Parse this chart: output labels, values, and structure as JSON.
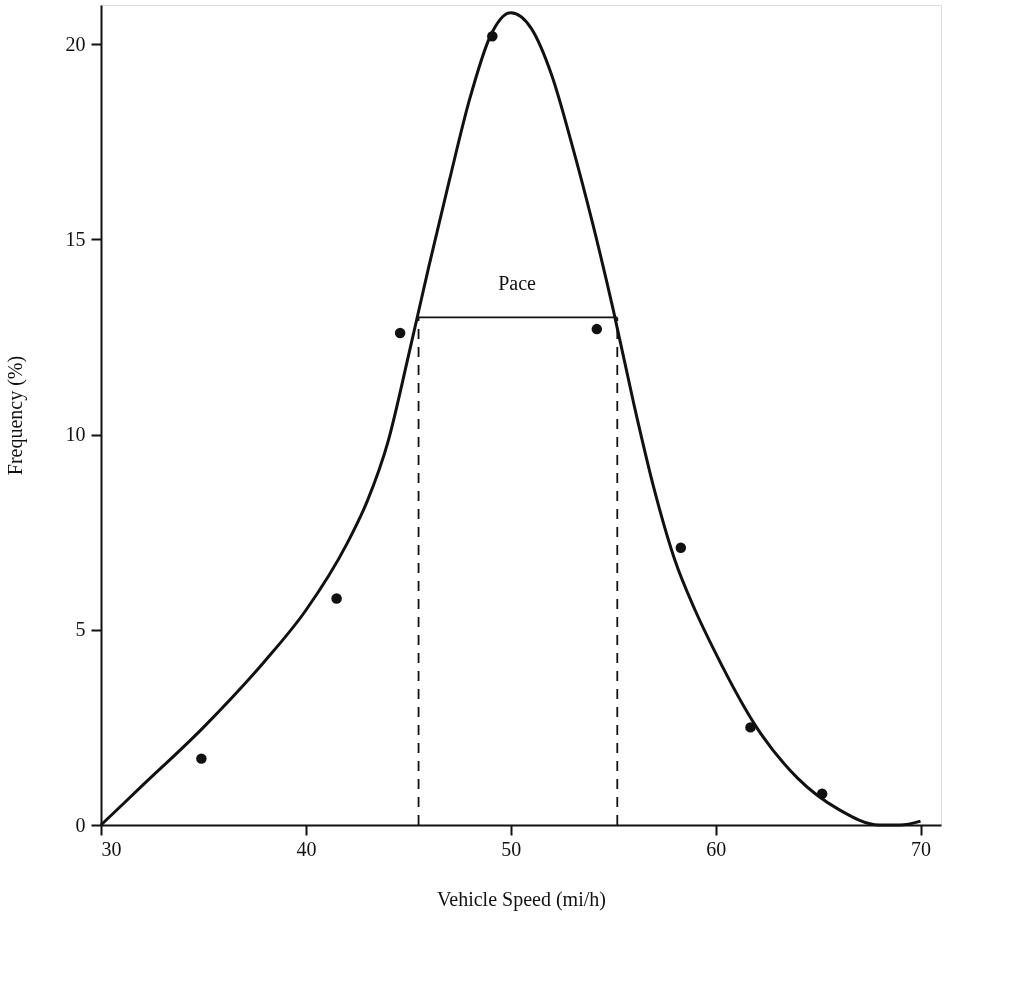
{
  "chart_data": {
    "type": "line",
    "xlabel": "Vehicle Speed (mi/h)",
    "ylabel": "Frequency (%)",
    "xlim": [
      30,
      71
    ],
    "ylim": [
      0,
      21
    ],
    "xticks": [
      30,
      40,
      50,
      60,
      70
    ],
    "yticks": [
      0,
      5,
      10,
      15,
      20
    ],
    "grid": false,
    "series": [
      {
        "type": "scatter",
        "marker": "circle",
        "color": "#111111",
        "x": [
          34.9,
          41.5,
          44.6,
          49.1,
          54.2,
          58.3,
          61.7,
          65.2
        ],
        "values": [
          1.7,
          5.8,
          12.6,
          20.2,
          12.7,
          7.1,
          2.5,
          0.8
        ]
      },
      {
        "marker": "none",
        "line_style": "solid",
        "color": "#111111",
        "x": [
          30,
          32,
          35,
          38,
          40,
          42,
          43,
          44,
          45,
          46,
          47,
          48,
          49,
          50,
          51,
          52,
          53,
          54,
          55,
          56,
          57,
          58,
          59,
          60,
          62,
          64,
          66,
          68,
          69,
          70
        ],
        "values": [
          0,
          1.0,
          2.5,
          4.2,
          5.5,
          7.2,
          8.3,
          9.8,
          12.0,
          14.3,
          16.5,
          18.6,
          20.2,
          20.8,
          20.4,
          19.2,
          17.4,
          15.4,
          13.2,
          10.8,
          8.6,
          6.8,
          5.5,
          4.4,
          2.5,
          1.2,
          0.4,
          0,
          0,
          0.1
        ]
      },
      {
        "marker": "none",
        "line_style": "solid",
        "color": "#111111",
        "x": [
          45.5,
          55.2
        ],
        "values": [
          13,
          13
        ]
      },
      {
        "marker": "none",
        "line_style": "dashed",
        "color": "#111111",
        "x": [
          45.5,
          45.5
        ],
        "values": [
          0,
          13
        ]
      },
      {
        "marker": "none",
        "line_style": "dashed",
        "color": "#111111",
        "x": [
          55.2,
          55.2
        ],
        "values": [
          0,
          13
        ]
      }
    ],
    "annotations": [
      "Pace"
    ]
  }
}
